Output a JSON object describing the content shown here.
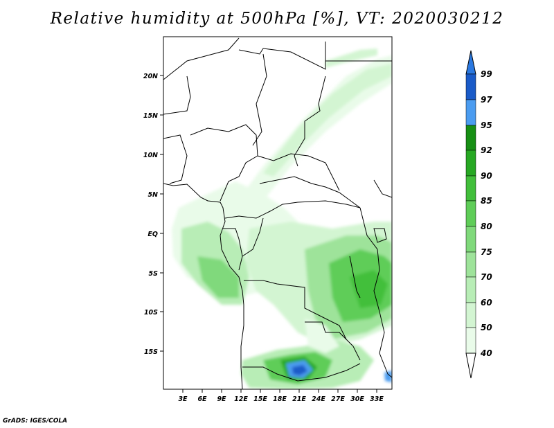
{
  "title": "Relative humidity at 500hPa [%], VT: 2020030212",
  "footer": "GrADS: IGES/COLA",
  "map": {
    "lat_ticks": [
      "20N",
      "15N",
      "10N",
      "5N",
      "EQ",
      "5S",
      "10S",
      "15S"
    ],
    "lon_ticks": [
      "3E",
      "6E",
      "9E",
      "12E",
      "15E",
      "18E",
      "21E",
      "24E",
      "27E",
      "30E",
      "33E"
    ]
  },
  "colorbar": {
    "labels": [
      "99",
      "97",
      "95",
      "92",
      "90",
      "85",
      "80",
      "75",
      "70",
      "60",
      "50",
      "40"
    ],
    "colors": {
      "rh_40_50": "#e9fbe9",
      "rh_50_60": "#d3f5d2",
      "rh_60_70": "#b8edb6",
      "rh_70_75": "#9ee39a",
      "rh_75_80": "#80d97b",
      "rh_80_85": "#5fcd58",
      "rh_85_90": "#42bf3b",
      "rh_90_92": "#27a823",
      "rh_92_95": "#178f14",
      "rh_95_97": "#4b9cf0",
      "rh_97_99": "#2a78e0",
      "rh_99_plus": "#1a5bc8"
    }
  }
}
